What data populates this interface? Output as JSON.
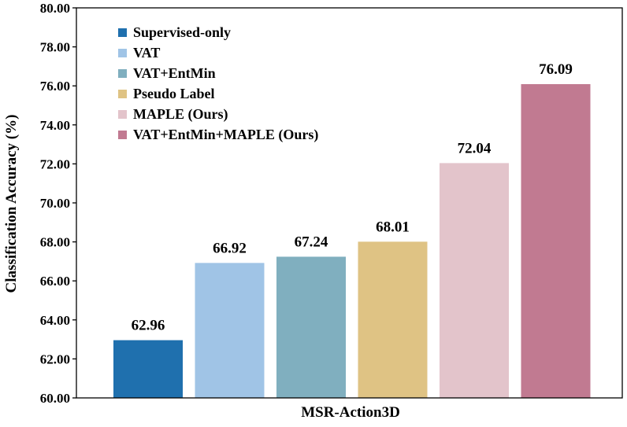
{
  "chart_data": {
    "type": "bar",
    "title": "",
    "xlabel": "MSR-Action3D",
    "ylabel": "Classification Accuracy (%)",
    "ylim": [
      60,
      80
    ],
    "ytick_step": 2,
    "ytick_decimals": 2,
    "grid": false,
    "legend_position": "top-left",
    "categories": [
      "MSR-Action3D"
    ],
    "series": [
      {
        "name": "Supervised-only",
        "values": [
          62.96
        ],
        "label": "62.96",
        "color": "#1f70ae"
      },
      {
        "name": "VAT",
        "values": [
          66.92
        ],
        "label": "66.92",
        "color": "#a0c4e6"
      },
      {
        "name": "VAT+EntMin",
        "values": [
          67.24
        ],
        "label": "67.24",
        "color": "#80afbf"
      },
      {
        "name": "Pseudo Label",
        "values": [
          68.01
        ],
        "label": "68.01",
        "color": "#dfc384"
      },
      {
        "name": "MAPLE (Ours)",
        "values": [
          72.04
        ],
        "label": "72.04",
        "color": "#e3c4cb"
      },
      {
        "name": "VAT+EntMin+MAPLE (Ours)",
        "values": [
          76.09
        ],
        "label": "76.09",
        "color": "#c17a91"
      }
    ]
  }
}
